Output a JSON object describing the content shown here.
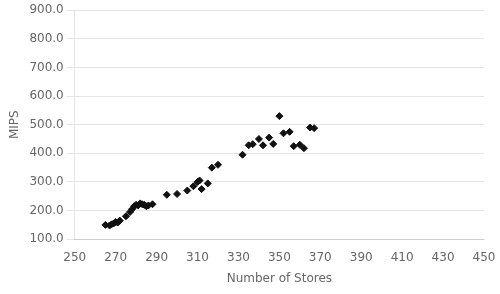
{
  "chart_data": {
    "type": "scatter",
    "x": [
      265,
      267,
      268,
      269,
      270,
      271,
      272,
      275,
      277,
      278,
      279,
      280,
      281,
      282,
      283,
      284,
      285,
      286,
      288,
      295,
      300,
      305,
      308,
      310,
      311,
      312,
      315,
      317,
      320,
      332,
      335,
      337,
      340,
      342,
      345,
      347,
      350,
      352,
      355,
      357,
      360,
      362,
      365,
      367
    ],
    "values": [
      150,
      148,
      152,
      155,
      160,
      158,
      165,
      180,
      195,
      205,
      215,
      220,
      218,
      225,
      222,
      220,
      215,
      218,
      222,
      255,
      258,
      270,
      285,
      300,
      305,
      275,
      295,
      350,
      360,
      395,
      428,
      432,
      450,
      428,
      455,
      433,
      530,
      470,
      475,
      425,
      430,
      418,
      490,
      488
    ],
    "xlabel": "Number of Stores",
    "ylabel": "MIPS",
    "color": "#111111",
    "marker": "diamond",
    "xlim": [
      250,
      450
    ],
    "ylim": [
      100,
      900
    ],
    "xticks": [
      250,
      270,
      290,
      310,
      330,
      350,
      370,
      390,
      410,
      430,
      450
    ],
    "yticks": [
      {
        "value": 100,
        "label": "100.0"
      },
      {
        "value": 200,
        "label": "200.0"
      },
      {
        "value": 300,
        "label": "300.0"
      },
      {
        "value": 400,
        "label": "400.0"
      },
      {
        "value": 500,
        "label": "500.0"
      },
      {
        "value": 600,
        "label": "600.0"
      },
      {
        "value": 700,
        "label": "700.0"
      },
      {
        "value": 800,
        "label": "800.0"
      },
      {
        "value": 900,
        "label": "900.0"
      }
    ],
    "grid": "y"
  }
}
